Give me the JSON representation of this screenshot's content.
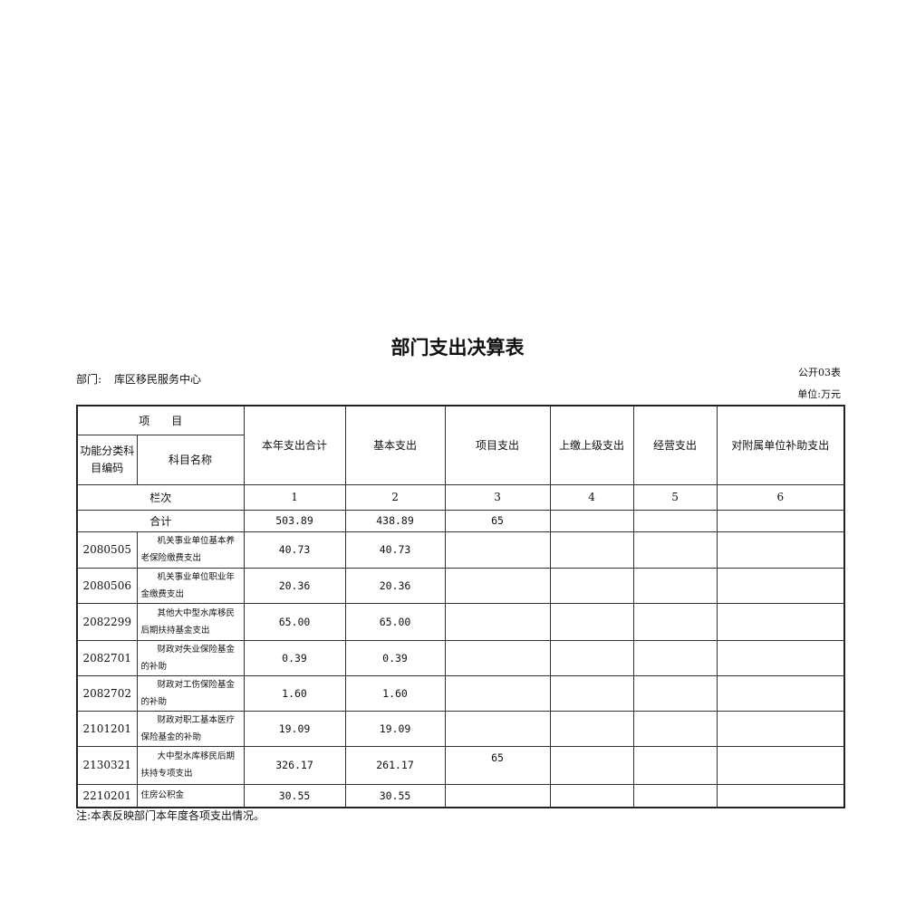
{
  "title": "部门支出决算表",
  "department_label": "部门:",
  "department": "库区移民服务中心",
  "form_no": "公开03表",
  "unit": "单位:万元",
  "headers": {
    "item": "项　　目",
    "code": "功能分类科目编码",
    "name": "科目名称",
    "total": "本年支出合计",
    "basic": "基本支出",
    "project": "项目支出",
    "upper": "上缴上级支出",
    "business": "经营支出",
    "subsidiary": "对附属单位补助支出"
  },
  "column_row": {
    "label": "栏次",
    "nums": [
      "1",
      "2",
      "3",
      "4",
      "5",
      "6"
    ]
  },
  "total_row": {
    "label": "合计",
    "total": "503.89",
    "basic": "438.89",
    "project": "65",
    "upper": "",
    "business": "",
    "subsidiary": ""
  },
  "rows": [
    {
      "code": "2080505",
      "name1": "机关事业单位基本养",
      "name2": "老保险缴费支出",
      "total": "40.73",
      "basic": "40.73",
      "project": ""
    },
    {
      "code": "2080506",
      "name1": "机关事业单位职业年",
      "name2": "金缴费支出",
      "total": "20.36",
      "basic": "20.36",
      "project": ""
    },
    {
      "code": "2082299",
      "name1": "其他大中型水库移民",
      "name2": "后期扶持基金支出",
      "total": "65.00",
      "basic": "65.00",
      "project": ""
    },
    {
      "code": "2082701",
      "name1": "财政对失业保险基金",
      "name2": "的补助",
      "total": "0.39",
      "basic": "0.39",
      "project": ""
    },
    {
      "code": "2082702",
      "name1": "财政对工伤保险基金",
      "name2": "的补助",
      "total": "1.60",
      "basic": "1.60",
      "project": ""
    },
    {
      "code": "2101201",
      "name1": "财政对职工基本医疗",
      "name2": "保险基金的补助",
      "total": "19.09",
      "basic": "19.09",
      "project": ""
    },
    {
      "code": "2130321",
      "name1": "大中型水库移民后期",
      "name2": "扶持专项支出",
      "total": "326.17",
      "basic": "261.17",
      "project": "65"
    },
    {
      "code": "2210201",
      "name1": "住房公积金",
      "name2": "",
      "total": "30.55",
      "basic": "30.55",
      "project": ""
    }
  ],
  "note": "注:本表反映部门本年度各项支出情况。"
}
